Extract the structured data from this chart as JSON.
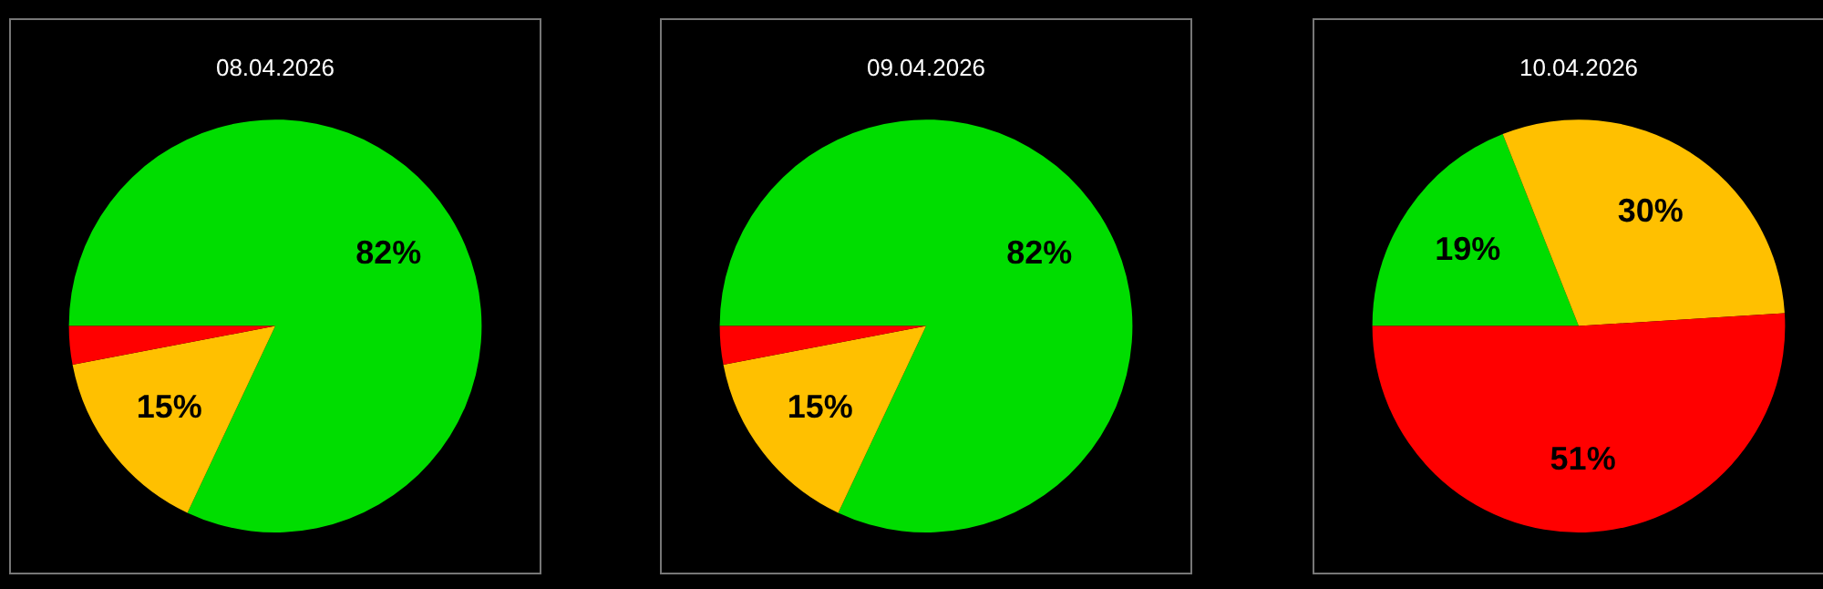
{
  "chart_data": [
    {
      "type": "pie",
      "title": "08.04.2026",
      "categories": [
        null,
        null,
        null
      ],
      "values": [
        82,
        15,
        3
      ],
      "colors": [
        "#00dd00",
        "#ffc000",
        "#ff0000"
      ],
      "value_labels": [
        "82%",
        "15%",
        null
      ]
    },
    {
      "type": "pie",
      "title": "09.04.2026",
      "categories": [
        null,
        null,
        null
      ],
      "values": [
        82,
        15,
        3
      ],
      "colors": [
        "#00dd00",
        "#ffc000",
        "#ff0000"
      ],
      "value_labels": [
        "82%",
        "15%",
        null
      ]
    },
    {
      "type": "pie",
      "title": "10.04.2026",
      "categories": [
        null,
        null,
        null
      ],
      "values": [
        19,
        30,
        51
      ],
      "colors": [
        "#00dd00",
        "#ffc000",
        "#ff0000"
      ],
      "value_labels": [
        "19%",
        "30%",
        "51%"
      ]
    }
  ]
}
